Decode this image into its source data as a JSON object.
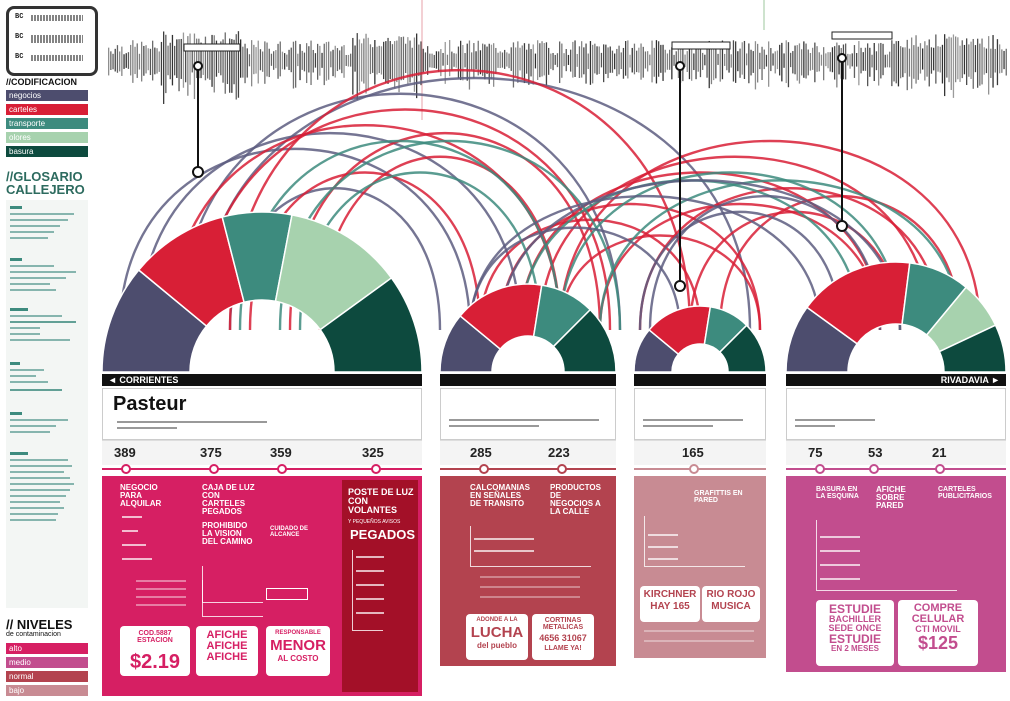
{
  "colors": {
    "negocios": "#4d4d6e",
    "carteles": "#d81f36",
    "transporte": "#3d8b7e",
    "olores": "#a7d2ae",
    "basura": "#0d4a3e",
    "panel1": "#d61f63",
    "panel2": "#b3434f",
    "panel3": "#c88b93",
    "panel4": "#c24d8e",
    "panel4b": "#7d1523"
  },
  "legend": {
    "rows": [
      "BC",
      "BC",
      "BC"
    ]
  },
  "sidebar": {
    "codificacion_title": "//CODIFICACION",
    "categories": [
      "negocios",
      "carteles",
      "transporte",
      "olores",
      "basura"
    ],
    "glosario_title_1": "//GLOSARIO",
    "glosario_title_2": "CALLEJERO",
    "niveles_title_1": "// NIVELES",
    "niveles_title_2": "de contaminacion",
    "niveles": [
      "alto",
      "medio",
      "normal",
      "bajo"
    ]
  },
  "streets": {
    "left": "CORRIENTES",
    "right": "RIVADAVIA",
    "name": "Pasteur"
  },
  "counts": {
    "g1": [
      "389",
      "375",
      "359",
      "325"
    ],
    "g2": [
      "285",
      "223"
    ],
    "g3": [
      "165"
    ],
    "g4": [
      "75",
      "53",
      "21"
    ]
  },
  "panel1": {
    "h1": "NEGOCIO PARA ALQUILAR",
    "h2": "CAJA DE LUZ CON CARTELES PEGADOS",
    "h3": "PROHIBIDO LA VISION DEL CAMINO",
    "h4": "CUIDADO DE ALCANCE",
    "poste": "POSTE DE LUZ CON VOLANTES",
    "poste_sub": "Y PEQUEÑOS AVISOS",
    "pegados": "PEGADOS",
    "sign1_a": "COD.5887 ESTACION",
    "sign1_b": "$2.19",
    "sign2": "AFICHE AFICHE AFICHE",
    "sign3_a": "RESPONSABLE",
    "sign3_b": "MENOR",
    "sign3_c": "AL COSTO"
  },
  "panel2": {
    "h1": "CALCOMANIAS EN SEÑALES DE TRANSITO",
    "h2": "PRODUCTOS DE NEGOCIOS A LA CALLE",
    "sign1_a": "ADONDE A LA",
    "sign1_b": "LUCHA",
    "sign1_c": "del pueblo",
    "sign2_a": "CORTINAS METALICAS",
    "sign2_b": "4656 31067",
    "sign2_c": "LLAME YA!"
  },
  "panel3": {
    "h1": "GRAFITTIS EN PARED",
    "sign1_a": "KIRCHNER",
    "sign1_b": "HAY 165",
    "sign2_a": "RIO ROJO",
    "sign2_b": "MUSICA"
  },
  "panel4": {
    "h1": "BASURA EN LA ESQUINA",
    "h2": "AFICHE SOBRE PARED",
    "h3": "CARTELES PUBLICITARIOS",
    "sign1_a": "ESTUDIE",
    "sign1_b": "BACHILLER",
    "sign1_c": "SEDE ONCE",
    "sign1_d": "ESTUDIE",
    "sign1_e": "EN 2 MESES",
    "sign2_a": "COMPRE",
    "sign2_b": "CELULAR",
    "sign2_c": "CTI MOVIL",
    "sign2_d": "$125"
  },
  "donuts": [
    {
      "slices": [
        [
          "negocios",
          0.22
        ],
        [
          "carteles",
          0.2
        ],
        [
          "transporte",
          0.14
        ],
        [
          "olores",
          0.24
        ],
        [
          "basura",
          0.2
        ]
      ]
    },
    {
      "slices": [
        [
          "negocios",
          0.22
        ],
        [
          "carteles",
          0.33
        ],
        [
          "transporte",
          0.2
        ],
        [
          "basura",
          0.25
        ]
      ]
    },
    {
      "slices": [
        [
          "negocios",
          0.22
        ],
        [
          "carteles",
          0.33
        ],
        [
          "transporte",
          0.2
        ],
        [
          "basura",
          0.25
        ]
      ]
    },
    {
      "slices": [
        [
          "negocios",
          0.2
        ],
        [
          "carteles",
          0.34
        ],
        [
          "transporte",
          0.18
        ],
        [
          "olores",
          0.14
        ],
        [
          "basura",
          0.14
        ]
      ]
    }
  ]
}
